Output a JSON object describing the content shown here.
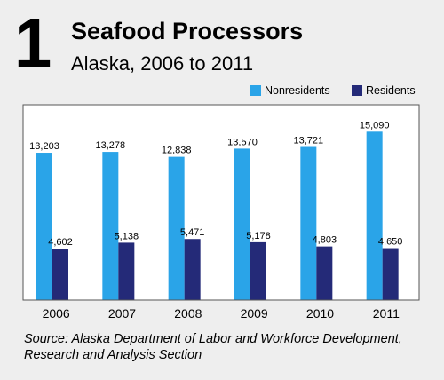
{
  "header": {
    "number": "1",
    "title": "Seafood Processors",
    "subtitle": "Alaska, 2006 to 2011"
  },
  "colors": {
    "nonresidents": "#2aa4e8",
    "residents": "#242a78"
  },
  "legend": {
    "nonresidents": "Nonresidents",
    "residents": "Residents"
  },
  "source": "Source: Alaska Department of Labor and Workforce Development, Research and Analysis Section",
  "chart_data": {
    "type": "bar",
    "categories": [
      "2006",
      "2007",
      "2008",
      "2009",
      "2010",
      "2011"
    ],
    "series": [
      {
        "name": "Nonresidents",
        "values": [
          13203,
          13278,
          12838,
          13570,
          13721,
          15090
        ]
      },
      {
        "name": "Residents",
        "values": [
          4602,
          5138,
          5471,
          5178,
          4803,
          4650
        ]
      }
    ],
    "data_labels": {
      "Nonresidents": [
        "13,203",
        "13,278",
        "12,838",
        "13,570",
        "13,721",
        "15,090"
      ],
      "Residents": [
        "4,602",
        "5,138",
        "5,471",
        "5,178",
        "4,803",
        "4,650"
      ]
    },
    "title": "Seafood Processors",
    "subtitle": "Alaska, 2006 to 2011",
    "xlabel": "",
    "ylabel": "",
    "ylim": [
      0,
      17500
    ],
    "grid": false,
    "legend_position": "top-right"
  }
}
